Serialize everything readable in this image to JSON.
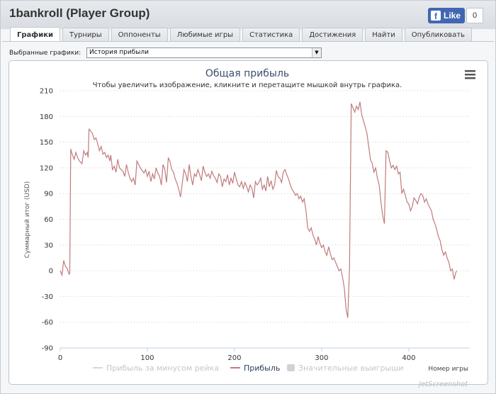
{
  "window": {
    "title": "1bankroll (Player Group)",
    "facebook": {
      "like_label": "Like",
      "logo_letter": "f",
      "count": "0",
      "color": "#4267b2"
    }
  },
  "tabs": [
    {
      "label": "Графики",
      "active": true
    },
    {
      "label": "Турниры",
      "active": false
    },
    {
      "label": "Оппоненты",
      "active": false
    },
    {
      "label": "Любимые игры",
      "active": false
    },
    {
      "label": "Статистика",
      "active": false
    },
    {
      "label": "Достижения",
      "active": false
    },
    {
      "label": "Найти",
      "active": false
    },
    {
      "label": "Опубликовать",
      "active": false
    }
  ],
  "selector": {
    "label": "Выбранные графики:",
    "value": "История прибыли",
    "arrow_glyph": "▼"
  },
  "menu_icon": "hamburger-menu-icon",
  "watermark": "JetScreenshot",
  "chart_data": {
    "type": "line",
    "title": "Общая прибыль",
    "subtitle": "Чтобы увеличить изображение, кликните и перетащите мышкой внутрь графика.",
    "ylabel": "Суммарный итог (USD)",
    "xlabel": "Номер игры",
    "ylim": [
      -90,
      210
    ],
    "yticks": [
      -90,
      -60,
      -30,
      0,
      30,
      60,
      90,
      120,
      150,
      180,
      210
    ],
    "xlim": [
      0,
      470
    ],
    "xticks": [
      0,
      100,
      200,
      300,
      400
    ],
    "grid": "horizontal-dotted",
    "legend_position": "bottom",
    "series": [
      {
        "name": "Прибыль за минусом рейка",
        "visible": false,
        "color": "#d0d4d8",
        "values": []
      },
      {
        "name": "Прибыль",
        "visible": true,
        "color": "#c07b7b",
        "values": [
          [
            0,
            0
          ],
          [
            2,
            -5
          ],
          [
            4,
            12
          ],
          [
            6,
            5
          ],
          [
            8,
            3
          ],
          [
            10,
            -4
          ],
          [
            11,
            -3
          ],
          [
            12,
            142
          ],
          [
            14,
            135
          ],
          [
            16,
            130
          ],
          [
            18,
            138
          ],
          [
            20,
            132
          ],
          [
            22,
            128
          ],
          [
            25,
            125
          ],
          [
            27,
            140
          ],
          [
            29,
            135
          ],
          [
            31,
            138
          ],
          [
            32,
            132
          ],
          [
            33,
            165
          ],
          [
            35,
            163
          ],
          [
            37,
            160
          ],
          [
            39,
            153
          ],
          [
            41,
            155
          ],
          [
            43,
            148
          ],
          [
            45,
            140
          ],
          [
            47,
            145
          ],
          [
            49,
            136
          ],
          [
            51,
            138
          ],
          [
            53,
            132
          ],
          [
            55,
            135
          ],
          [
            57,
            128
          ],
          [
            58,
            135
          ],
          [
            60,
            118
          ],
          [
            62,
            122
          ],
          [
            64,
            115
          ],
          [
            66,
            130
          ],
          [
            68,
            120
          ],
          [
            70,
            118
          ],
          [
            72,
            116
          ],
          [
            74,
            110
          ],
          [
            76,
            124
          ],
          [
            78,
            115
          ],
          [
            80,
            108
          ],
          [
            82,
            104
          ],
          [
            84,
            108
          ],
          [
            86,
            100
          ],
          [
            88,
            128
          ],
          [
            90,
            124
          ],
          [
            92,
            120
          ],
          [
            94,
            117
          ],
          [
            96,
            114
          ],
          [
            98,
            118
          ],
          [
            100,
            110
          ],
          [
            102,
            116
          ],
          [
            104,
            104
          ],
          [
            106,
            113
          ],
          [
            108,
            107
          ],
          [
            110,
            120
          ],
          [
            112,
            114
          ],
          [
            114,
            110
          ],
          [
            116,
            100
          ],
          [
            118,
            124
          ],
          [
            120,
            118
          ],
          [
            122,
            103
          ],
          [
            124,
            132
          ],
          [
            126,
            127
          ],
          [
            128,
            118
          ],
          [
            130,
            115
          ],
          [
            132,
            107
          ],
          [
            134,
            102
          ],
          [
            136,
            95
          ],
          [
            138,
            86
          ],
          [
            140,
            102
          ],
          [
            142,
            118
          ],
          [
            144,
            113
          ],
          [
            146,
            104
          ],
          [
            148,
            124
          ],
          [
            150,
            110
          ],
          [
            152,
            100
          ],
          [
            154,
            113
          ],
          [
            156,
            110
          ],
          [
            158,
            118
          ],
          [
            160,
            112
          ],
          [
            162,
            105
          ],
          [
            164,
            122
          ],
          [
            166,
            115
          ],
          [
            168,
            110
          ],
          [
            170,
            113
          ],
          [
            172,
            108
          ],
          [
            174,
            116
          ],
          [
            176,
            111
          ],
          [
            178,
            108
          ],
          [
            180,
            103
          ],
          [
            182,
            113
          ],
          [
            184,
            110
          ],
          [
            186,
            98
          ],
          [
            188,
            107
          ],
          [
            190,
            104
          ],
          [
            192,
            112
          ],
          [
            194,
            100
          ],
          [
            196,
            108
          ],
          [
            198,
            102
          ],
          [
            200,
            115
          ],
          [
            202,
            107
          ],
          [
            204,
            100
          ],
          [
            206,
            98
          ],
          [
            208,
            104
          ],
          [
            210,
            96
          ],
          [
            212,
            103
          ],
          [
            214,
            98
          ],
          [
            216,
            92
          ],
          [
            218,
            100
          ],
          [
            220,
            96
          ],
          [
            222,
            85
          ],
          [
            224,
            104
          ],
          [
            226,
            100
          ],
          [
            228,
            103
          ],
          [
            230,
            108
          ],
          [
            232,
            95
          ],
          [
            234,
            100
          ],
          [
            236,
            93
          ],
          [
            238,
            110
          ],
          [
            240,
            98
          ],
          [
            242,
            105
          ],
          [
            244,
            95
          ],
          [
            246,
            100
          ],
          [
            248,
            117
          ],
          [
            250,
            110
          ],
          [
            252,
            108
          ],
          [
            254,
            103
          ],
          [
            256,
            115
          ],
          [
            258,
            118
          ],
          [
            260,
            112
          ],
          [
            262,
            107
          ],
          [
            264,
            100
          ],
          [
            266,
            95
          ],
          [
            268,
            92
          ],
          [
            270,
            88
          ],
          [
            272,
            90
          ],
          [
            274,
            84
          ],
          [
            276,
            87
          ],
          [
            278,
            80
          ],
          [
            280,
            84
          ],
          [
            282,
            70
          ],
          [
            284,
            50
          ],
          [
            286,
            46
          ],
          [
            288,
            50
          ],
          [
            290,
            42
          ],
          [
            292,
            37
          ],
          [
            294,
            30
          ],
          [
            296,
            40
          ],
          [
            298,
            32
          ],
          [
            300,
            27
          ],
          [
            302,
            30
          ],
          [
            304,
            22
          ],
          [
            306,
            18
          ],
          [
            308,
            28
          ],
          [
            310,
            20
          ],
          [
            312,
            13
          ],
          [
            314,
            15
          ],
          [
            316,
            10
          ],
          [
            318,
            5
          ],
          [
            320,
            0
          ],
          [
            322,
            2
          ],
          [
            324,
            -8
          ],
          [
            326,
            -20
          ],
          [
            328,
            -45
          ],
          [
            330,
            -55
          ],
          [
            332,
            5
          ],
          [
            334,
            195
          ],
          [
            336,
            190
          ],
          [
            338,
            185
          ],
          [
            340,
            192
          ],
          [
            342,
            188
          ],
          [
            344,
            197
          ],
          [
            346,
            182
          ],
          [
            348,
            175
          ],
          [
            350,
            168
          ],
          [
            352,
            160
          ],
          [
            354,
            145
          ],
          [
            356,
            130
          ],
          [
            358,
            125
          ],
          [
            360,
            115
          ],
          [
            362,
            120
          ],
          [
            364,
            108
          ],
          [
            366,
            100
          ],
          [
            368,
            80
          ],
          [
            370,
            65
          ],
          [
            372,
            55
          ],
          [
            374,
            140
          ],
          [
            376,
            138
          ],
          [
            378,
            128
          ],
          [
            380,
            120
          ],
          [
            382,
            123
          ],
          [
            384,
            118
          ],
          [
            386,
            122
          ],
          [
            388,
            113
          ],
          [
            390,
            115
          ],
          [
            392,
            90
          ],
          [
            394,
            95
          ],
          [
            396,
            88
          ],
          [
            398,
            80
          ],
          [
            400,
            78
          ],
          [
            402,
            70
          ],
          [
            404,
            75
          ],
          [
            406,
            85
          ],
          [
            408,
            82
          ],
          [
            410,
            78
          ],
          [
            412,
            86
          ],
          [
            414,
            90
          ],
          [
            416,
            88
          ],
          [
            418,
            80
          ],
          [
            420,
            84
          ],
          [
            422,
            78
          ],
          [
            424,
            74
          ],
          [
            426,
            70
          ],
          [
            428,
            60
          ],
          [
            430,
            55
          ],
          [
            432,
            48
          ],
          [
            434,
            40
          ],
          [
            436,
            35
          ],
          [
            438,
            25
          ],
          [
            440,
            18
          ],
          [
            442,
            22
          ],
          [
            444,
            15
          ],
          [
            446,
            10
          ],
          [
            448,
            0
          ],
          [
            450,
            2
          ],
          [
            452,
            -10
          ],
          [
            454,
            -2
          ],
          [
            455,
            0
          ]
        ]
      },
      {
        "name": "Значительные выигрыши",
        "visible": false,
        "color": "#d0d4d8",
        "values": []
      }
    ]
  }
}
